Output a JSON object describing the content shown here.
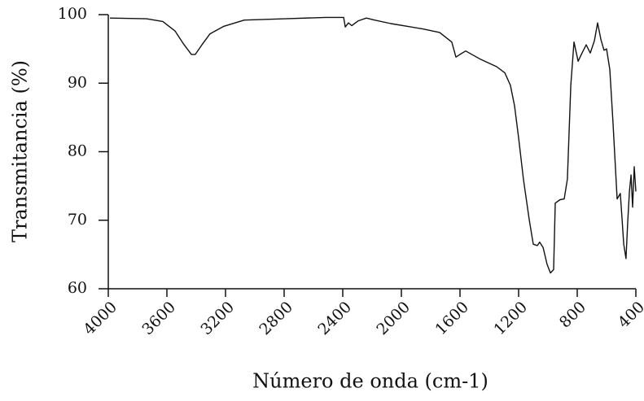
{
  "chart_data": {
    "type": "line",
    "x_label": "Número de onda (cm-1)",
    "y_label": "Transmitancia (%)",
    "xlim": [
      4000,
      400
    ],
    "ylim": [
      60,
      100
    ],
    "xticks": [
      4000,
      3600,
      3200,
      2800,
      2400,
      2000,
      1600,
      1200,
      800,
      400
    ],
    "yticks": [
      60,
      70,
      80,
      90,
      100
    ],
    "series": [
      {
        "color": "#111111",
        "x": [
          3989,
          3739,
          3628,
          3544,
          3489,
          3433,
          3406,
          3361,
          3306,
          3211,
          3072,
          2794,
          2517,
          2394,
          2383,
          2361,
          2339,
          2294,
          2239,
          2183,
          2072,
          1961,
          1850,
          1739,
          1656,
          1628,
          1600,
          1561,
          1461,
          1350,
          1294,
          1256,
          1228,
          1200,
          1167,
          1128,
          1100,
          1072,
          1056,
          1033,
          1006,
          983,
          961,
          950,
          917,
          889,
          867,
          844,
          822,
          794,
          767,
          739,
          711,
          683,
          661,
          639,
          617,
          600,
          578,
          556,
          528,
          506,
          494,
          483,
          467,
          456,
          444,
          433,
          422,
          411,
          400
        ],
        "values": [
          99.5,
          99.4,
          99.0,
          97.6,
          95.8,
          94.2,
          94.2,
          95.6,
          97.2,
          98.3,
          99.2,
          99.4,
          99.6,
          99.6,
          98.2,
          98.8,
          98.4,
          99.1,
          99.5,
          99.2,
          98.7,
          98.3,
          97.9,
          97.4,
          96.0,
          93.8,
          94.2,
          94.7,
          93.5,
          92.4,
          91.5,
          89.7,
          86.7,
          82.0,
          76.0,
          70.1,
          66.5,
          66.3,
          66.8,
          66.0,
          63.6,
          62.3,
          62.8,
          72.5,
          73.0,
          73.1,
          76.0,
          89.7,
          96.0,
          93.2,
          94.4,
          95.6,
          94.4,
          96.2,
          98.8,
          96.4,
          94.8,
          95.0,
          92.0,
          84.3,
          73.1,
          73.9,
          70.1,
          66.5,
          64.4,
          69.5,
          74.2,
          76.6,
          71.9,
          77.8,
          74.2
        ]
      }
    ]
  }
}
